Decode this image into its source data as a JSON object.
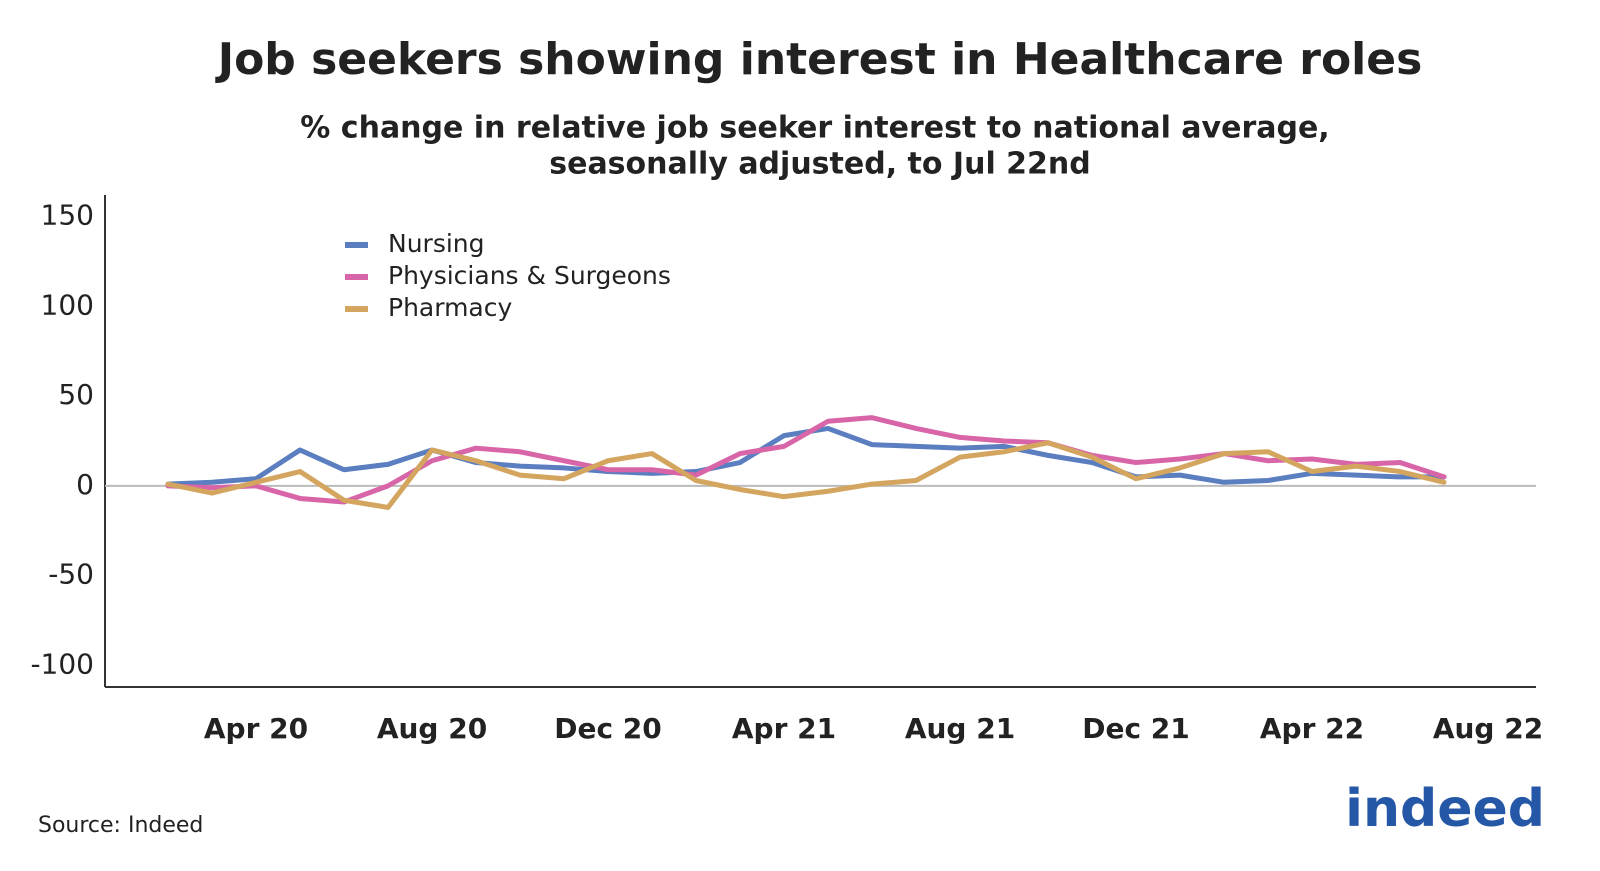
{
  "chart_data": {
    "type": "line",
    "title": "Job seekers showing interest in Healthcare roles",
    "subtitle": [
      "% change in relative job seeker interest to national average,",
      "seasonally adjusted, to Jul 22nd"
    ],
    "x": [
      "Feb 20",
      "Mar 20",
      "Apr 20",
      "May 20",
      "Jun 20",
      "Jul 20",
      "Aug 20",
      "Sep 20",
      "Oct 20",
      "Nov 20",
      "Dec 20",
      "Jan 21",
      "Feb 21",
      "Mar 21",
      "Apr 21",
      "May 21",
      "Jun 21",
      "Jul 21",
      "Aug 21",
      "Sep 21",
      "Oct 21",
      "Nov 21",
      "Dec 21",
      "Jan 22",
      "Feb 22",
      "Mar 22",
      "Apr 22",
      "May 22",
      "Jun 22",
      "Jul 22",
      "Aug 22"
    ],
    "series": [
      {
        "name": "Nursing",
        "color": "#5b7ec0",
        "values": [
          1,
          2,
          4,
          20,
          9,
          12,
          20,
          13,
          11,
          10,
          8,
          7,
          8,
          13,
          28,
          32,
          23,
          22,
          21,
          22,
          17,
          13,
          5,
          6,
          2,
          3,
          7,
          6,
          5,
          5,
          null
        ]
      },
      {
        "name": "Physicians & Surgeons",
        "color": "#d865a8",
        "values": [
          0,
          -1,
          0,
          -7,
          -9,
          0,
          14,
          21,
          19,
          14,
          9,
          9,
          6,
          18,
          22,
          36,
          38,
          32,
          27,
          25,
          24,
          17,
          13,
          15,
          18,
          14,
          15,
          12,
          13,
          5,
          null
        ]
      },
      {
        "name": "Pharmacy",
        "color": "#d4a55e",
        "values": [
          1,
          -4,
          2,
          8,
          -8,
          -12,
          20,
          14,
          6,
          4,
          14,
          18,
          3,
          -2,
          -6,
          -3,
          1,
          3,
          16,
          19,
          24,
          16,
          4,
          10,
          18,
          19,
          8,
          11,
          8,
          2,
          null
        ]
      }
    ],
    "xticks": [
      "Apr 20",
      "Aug 20",
      "Dec 20",
      "Apr 21",
      "Aug 21",
      "Dec 21",
      "Apr 22",
      "Aug 22"
    ],
    "ylim": [
      -112,
      162
    ],
    "yticks": [
      -100,
      -50,
      0,
      50,
      100,
      150
    ],
    "legend": "top-left",
    "source": "Source: Indeed",
    "logo": "indeed"
  }
}
